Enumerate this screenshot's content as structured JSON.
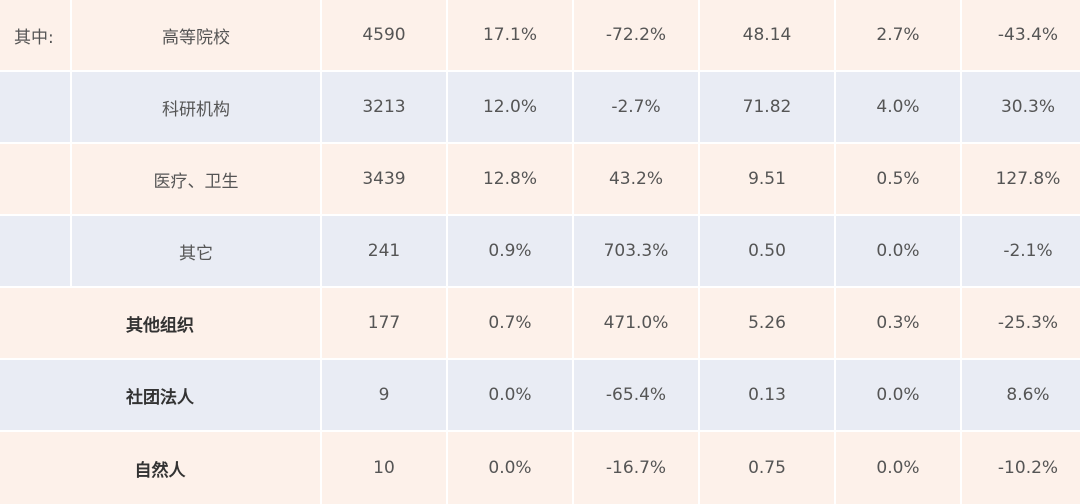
{
  "label_prefix": "其中:",
  "rows": [
    {
      "name": "高等院校",
      "values": [
        "4590",
        "17.1%",
        "-72.2%",
        "48.14",
        "2.7%",
        "-43.4%"
      ]
    },
    {
      "name": "科研机构",
      "values": [
        "3213",
        "12.0%",
        "-2.7%",
        "71.82",
        "4.0%",
        "30.3%"
      ]
    },
    {
      "name": "医疗、卫生",
      "values": [
        "3439",
        "12.8%",
        "43.2%",
        "9.51",
        "0.5%",
        "127.8%"
      ]
    },
    {
      "name": "其它",
      "values": [
        "241",
        "0.9%",
        "703.3%",
        "0.50",
        "0.0%",
        "-2.1%"
      ]
    },
    {
      "name": "其他组织",
      "values": [
        "177",
        "0.7%",
        "471.0%",
        "5.26",
        "0.3%",
        "-25.3%"
      ]
    },
    {
      "name": "社团法人",
      "values": [
        "9",
        "0.0%",
        "-65.4%",
        "0.13",
        "0.0%",
        "8.6%"
      ]
    },
    {
      "name": "自然人",
      "values": [
        "10",
        "0.0%",
        "-16.7%",
        "0.75",
        "0.0%",
        "-10.2%"
      ]
    }
  ],
  "colors": {
    "peach": "#fdf1ea",
    "blue": "#e9ecf4",
    "text": "#555555",
    "bold_text": "#333333"
  }
}
